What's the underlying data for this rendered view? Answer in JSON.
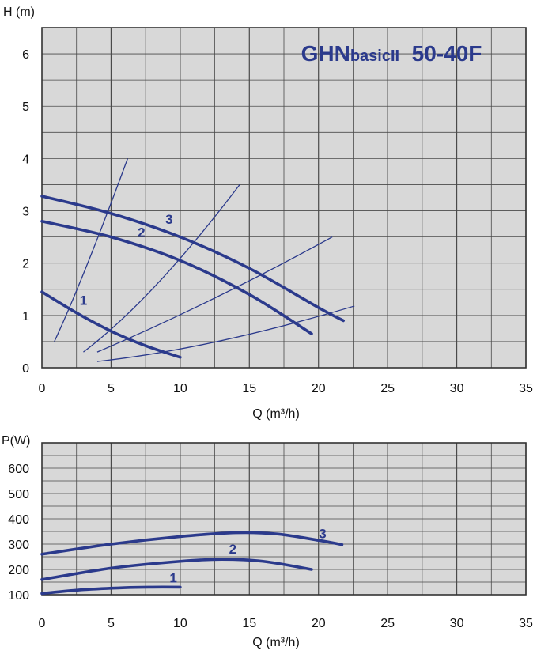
{
  "chart_data": [
    {
      "type": "line",
      "title": "GHNbasicII 50-40F",
      "title_parts": {
        "prefix": "GHN",
        "small": "basicII",
        "suffix": "50-40F"
      },
      "ylabel": "H (m)",
      "xlabel": "Q (m³/h)",
      "xlim": [
        0,
        35
      ],
      "ylim": [
        0,
        6.5
      ],
      "xticks": [
        0,
        5,
        10,
        15,
        20,
        25,
        30,
        35
      ],
      "yticks": [
        0,
        1,
        2,
        3,
        4,
        5,
        6
      ],
      "grid": true,
      "colors": {
        "grid": "#4a4a4a",
        "background": "#d8d8d8",
        "curve": "#2b3a8c"
      },
      "series": [
        {
          "name": "1",
          "x": [
            0,
            2.5,
            5,
            7.5,
            10
          ],
          "y": [
            1.45,
            1.05,
            0.7,
            0.42,
            0.2
          ]
        },
        {
          "name": "2",
          "x": [
            0,
            5,
            10,
            15,
            19.5
          ],
          "y": [
            2.8,
            2.5,
            2.05,
            1.4,
            0.65
          ]
        },
        {
          "name": "3",
          "x": [
            0,
            5,
            10,
            15,
            20,
            21.8
          ],
          "y": [
            3.28,
            2.95,
            2.5,
            1.9,
            1.15,
            0.9
          ]
        }
      ],
      "system_curves": [
        {
          "x": [
            0.9,
            3,
            6.2
          ],
          "y": [
            0.5,
            1.7,
            4.0
          ]
        },
        {
          "x": [
            3,
            8,
            14.3
          ],
          "y": [
            0.3,
            1.3,
            3.5
          ]
        },
        {
          "x": [
            4,
            12,
            21
          ],
          "y": [
            0.3,
            1.2,
            2.5
          ]
        },
        {
          "x": [
            4,
            12,
            22.6
          ],
          "y": [
            0.12,
            0.35,
            1.18
          ]
        }
      ]
    },
    {
      "type": "line",
      "ylabel": "P(W)",
      "xlabel": "Q (m³/h)",
      "xlim": [
        0,
        35
      ],
      "ylim": [
        100,
        700
      ],
      "xticks": [
        0,
        5,
        10,
        15,
        20,
        25,
        30,
        35
      ],
      "yticks": [
        100,
        200,
        300,
        400,
        500,
        600
      ],
      "grid": true,
      "series": [
        {
          "name": "1",
          "x": [
            0,
            3,
            6,
            8,
            10
          ],
          "y": [
            105,
            120,
            128,
            130,
            130
          ]
        },
        {
          "name": "2",
          "x": [
            0,
            5,
            10,
            13,
            16,
            19.5
          ],
          "y": [
            160,
            205,
            232,
            240,
            232,
            200
          ]
        },
        {
          "name": "3",
          "x": [
            0,
            5,
            10,
            14,
            17,
            20,
            21.7
          ],
          "y": [
            260,
            300,
            330,
            345,
            340,
            315,
            298
          ]
        }
      ]
    }
  ]
}
